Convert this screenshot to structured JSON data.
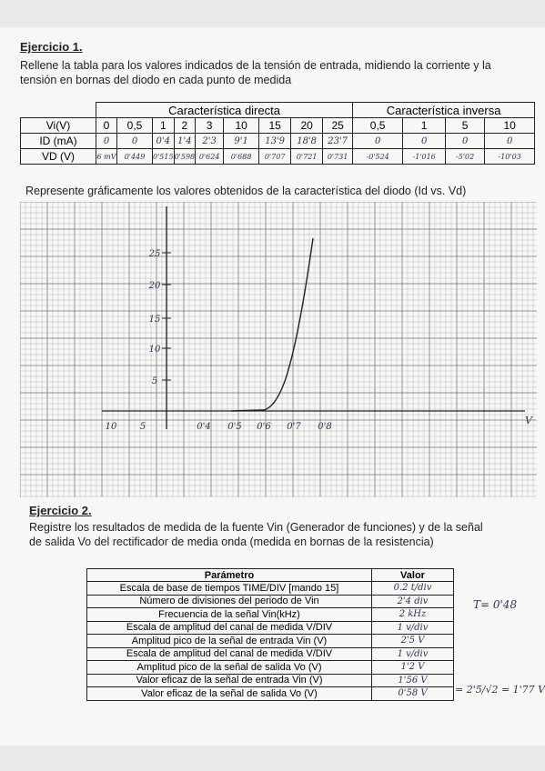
{
  "ex1": {
    "title": "Ejercicio 1.",
    "instruction": "Rellene la tabla para los valores indicados de la tensión de entrada, midiendo la corriente y la tensión en bornas del diodo en cada punto de medida",
    "table": {
      "groups": [
        "Característica directa",
        "Característica inversa"
      ],
      "rows": [
        {
          "label": "Vi(V)",
          "cells": [
            "0",
            "0,5",
            "1",
            "2",
            "3",
            "10",
            "15",
            "20",
            "25",
            "0,5",
            "1",
            "5",
            "10"
          ]
        },
        {
          "label": "ID (mA)",
          "cells": [
            "0",
            "0",
            "0'4",
            "1'4",
            "2'3",
            "9'1",
            "13'9",
            "18'8",
            "23'7",
            "0",
            "0",
            "0",
            "0"
          ]
        },
        {
          "label": "VD (V)",
          "cells": [
            "6 mV",
            "0'449",
            "0'515",
            "0'598",
            "0'624",
            "0'688",
            "0'707",
            "0'721",
            "0'731",
            "-0'524",
            "-1'016",
            "-5'02",
            "-10'03"
          ]
        }
      ]
    },
    "graph_instruction": "Represente gráficamente los valores obtenidos de la característica del diodo (Id vs. Vd)",
    "graph": {
      "y_labels": [
        "25",
        "20",
        "15",
        "10",
        "5"
      ],
      "x_labels": [
        "10",
        "5",
        "0'4",
        "0'5",
        "0'6",
        "0'7",
        "0'8"
      ],
      "x_axis_label": "V"
    }
  },
  "ex2": {
    "title": "Ejercicio 2.",
    "instruction": "Registre los resultados de medida de la fuente Vin (Generador de funciones) y de la señal de salida Vo del rectificador de media onda (medida en bornas de la resistencia)",
    "table": {
      "header": [
        "Parámetro",
        "Valor"
      ],
      "rows": [
        [
          "Escala de base de tiempos TIME/DIV [mando 15]",
          "0.2 t/div"
        ],
        [
          "Número de divisiones del periodo de Vin",
          "2'4 div"
        ],
        [
          "Frecuencia de la señal Vin(kHz)",
          "2 kHz"
        ],
        [
          "Escala de amplitud del canal de medida V/DIV",
          "1 v/div"
        ],
        [
          "Amplitud pico de la señal de entrada Vin (V)",
          "2'5 V"
        ],
        [
          "Escala de amplitud del canal de medida V/DIV",
          "1 v/div"
        ],
        [
          "Amplitud pico de la señal de salida Vo (V)",
          "1'2 V"
        ],
        [
          "Valor eficaz de la señal de entrada Vin (V)",
          "1'56 V"
        ],
        [
          "Valor eficaz de la señal de salida Vo (V)",
          "0'58 V"
        ]
      ]
    },
    "notes": [
      "T= 0'48",
      "= 2'5/√2 = 1'77 V"
    ]
  }
}
